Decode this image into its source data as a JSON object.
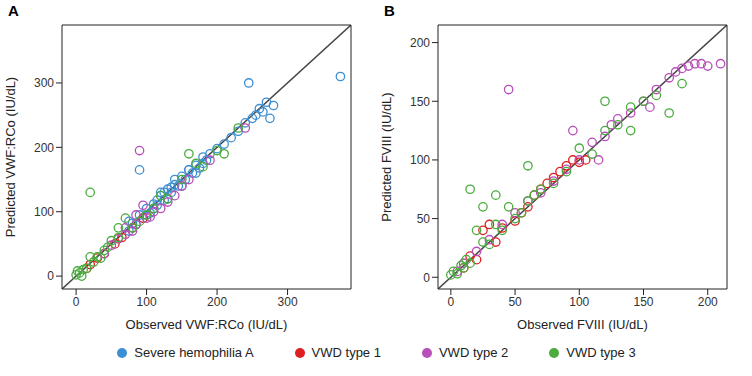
{
  "chart_data": [
    {
      "type": "scatter",
      "title": "A",
      "x_label": "Observed VWF:RCo (IU/dL)",
      "y_label": "Predicted VWF:RCo (IU/dL)",
      "xlim": [
        -20,
        390
      ],
      "ylim": [
        -20,
        390
      ],
      "xticks": [
        0,
        100,
        200,
        300
      ],
      "yticks": [
        0,
        100,
        200,
        300
      ],
      "marker": "circle_open",
      "legend": "bottom",
      "series": [
        {
          "name": "Severe hemophilia A",
          "color": "#3d8fd1",
          "x": [
            75,
            80,
            85,
            90,
            95,
            100,
            105,
            110,
            115,
            120,
            125,
            130,
            135,
            140,
            145,
            150,
            155,
            160,
            165,
            170,
            175,
            180,
            185,
            190,
            200,
            210,
            220,
            230,
            240,
            250,
            255,
            260,
            265,
            270,
            275,
            280,
            375,
            90,
            100,
            110,
            120,
            130,
            140,
            150,
            160,
            170,
            115,
            125,
            135,
            180,
            245,
            75
          ],
          "y": [
            70,
            82,
            80,
            95,
            90,
            105,
            98,
            112,
            110,
            125,
            118,
            135,
            130,
            142,
            140,
            155,
            150,
            165,
            160,
            172,
            168,
            185,
            180,
            190,
            198,
            205,
            215,
            225,
            238,
            245,
            250,
            260,
            255,
            270,
            245,
            265,
            310,
            165,
            95,
            105,
            130,
            120,
            150,
            140,
            165,
            160,
            118,
            130,
            138,
            175,
            300,
            85
          ]
        },
        {
          "name": "VWD type 1",
          "color": "#e02020",
          "x": [
            15,
            20,
            30,
            40,
            55,
            65,
            80,
            95
          ],
          "y": [
            12,
            18,
            28,
            35,
            50,
            60,
            75,
            90
          ]
        },
        {
          "name": "VWD type 2",
          "color": "#b84fb8",
          "x": [
            40,
            50,
            60,
            70,
            80,
            85,
            90,
            100,
            110,
            120,
            130,
            140,
            150,
            160,
            85,
            95,
            105,
            190,
            240,
            70
          ],
          "y": [
            35,
            48,
            58,
            65,
            70,
            80,
            195,
            90,
            100,
            105,
            115,
            125,
            140,
            150,
            95,
            110,
            92,
            180,
            230,
            75
          ]
        },
        {
          "name": "VWD type 3",
          "color": "#4aac3f",
          "x": [
            0,
            2,
            5,
            8,
            10,
            15,
            20,
            25,
            30,
            35,
            40,
            45,
            50,
            60,
            70,
            80,
            90,
            100,
            110,
            120,
            130,
            150,
            160,
            170,
            180,
            200,
            210,
            230,
            20,
            60
          ],
          "y": [
            2,
            8,
            5,
            0,
            10,
            12,
            130,
            22,
            30,
            28,
            40,
            45,
            55,
            60,
            90,
            75,
            85,
            95,
            105,
            125,
            120,
            150,
            190,
            175,
            170,
            195,
            190,
            230,
            30,
            75
          ]
        }
      ]
    },
    {
      "type": "scatter",
      "title": "B",
      "x_label": "Observed FVIII (IU/dL)",
      "y_label": "Predicted FVIII (IU/dL)",
      "xlim": [
        -10,
        215
      ],
      "ylim": [
        -10,
        215
      ],
      "xticks": [
        0,
        50,
        100,
        150,
        200
      ],
      "yticks": [
        0,
        50,
        100,
        150,
        200
      ],
      "marker": "circle_open",
      "series": [
        {
          "name": "VWD type 1",
          "color": "#e02020",
          "x": [
            10,
            15,
            20,
            25,
            30,
            35,
            40,
            50,
            55,
            60,
            65,
            70,
            75,
            80,
            85,
            90,
            95,
            100,
            105
          ],
          "y": [
            8,
            18,
            15,
            40,
            45,
            30,
            42,
            48,
            55,
            60,
            70,
            75,
            80,
            85,
            90,
            95,
            100,
            98,
            100
          ]
        },
        {
          "name": "VWD type 2",
          "color": "#b84fb8",
          "x": [
            5,
            10,
            20,
            30,
            40,
            50,
            60,
            70,
            80,
            90,
            100,
            110,
            120,
            125,
            130,
            140,
            150,
            155,
            160,
            170,
            175,
            180,
            185,
            190,
            195,
            200,
            210,
            45,
            95,
            115
          ],
          "y": [
            5,
            12,
            22,
            32,
            45,
            55,
            65,
            72,
            82,
            92,
            100,
            115,
            120,
            130,
            135,
            140,
            150,
            145,
            160,
            170,
            175,
            178,
            180,
            182,
            182,
            180,
            182,
            160,
            125,
            100
          ]
        },
        {
          "name": "VWD type 3",
          "color": "#4aac3f",
          "x": [
            0,
            2,
            5,
            8,
            10,
            12,
            15,
            20,
            25,
            30,
            35,
            40,
            45,
            50,
            55,
            60,
            65,
            70,
            80,
            90,
            100,
            110,
            120,
            130,
            140,
            150,
            160,
            170,
            180,
            15,
            25,
            35,
            60,
            140,
            120
          ],
          "y": [
            2,
            5,
            3,
            10,
            8,
            15,
            12,
            40,
            30,
            28,
            45,
            40,
            60,
            50,
            55,
            65,
            70,
            75,
            80,
            90,
            110,
            105,
            125,
            130,
            145,
            150,
            155,
            140,
            165,
            75,
            60,
            70,
            95,
            125,
            150
          ]
        }
      ]
    }
  ]
}
